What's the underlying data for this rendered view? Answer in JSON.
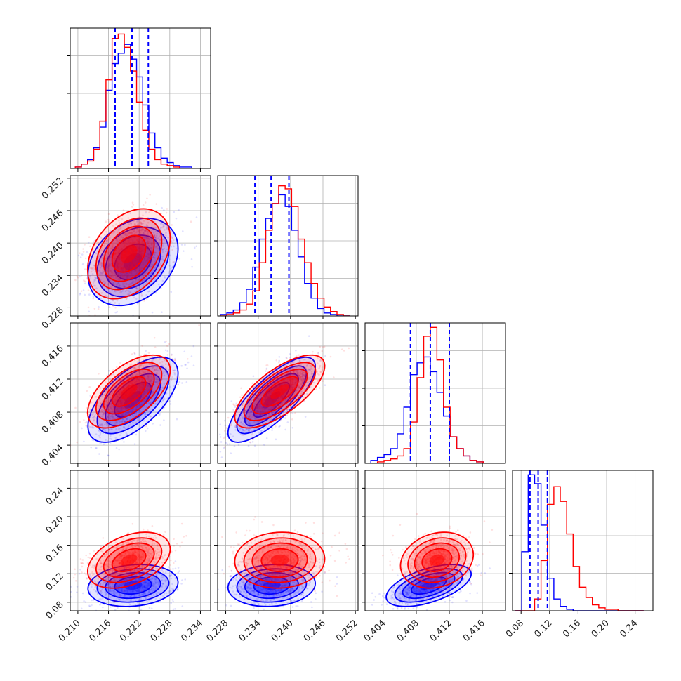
{
  "chart_data": {
    "type": "corner",
    "colors": {
      "blue": "#0000ff",
      "red": "#ff0000"
    },
    "grid": true,
    "params": [
      {
        "range": [
          0.2085,
          0.236
        ],
        "ticks": [
          "0.210",
          "0.216",
          "0.222",
          "0.228",
          "0.234"
        ],
        "tick_values": [
          0.21,
          0.216,
          0.222,
          0.228,
          0.234
        ]
      },
      {
        "range": [
          0.2265,
          0.2525
        ],
        "ticks": [
          "0.228",
          "0.234",
          "0.240",
          "0.246",
          "0.252"
        ],
        "tick_values": [
          0.228,
          0.234,
          0.24,
          0.246,
          0.252
        ]
      },
      {
        "range": [
          0.4018,
          0.4188
        ],
        "ticks": [
          "0.404",
          "0.408",
          "0.412",
          "0.416"
        ],
        "tick_values": [
          0.404,
          0.408,
          0.412,
          0.416
        ]
      },
      {
        "range": [
          0.068,
          0.265
        ],
        "ticks": [
          "0.08",
          "0.12",
          "0.16",
          "0.20",
          "0.24"
        ],
        "tick_values": [
          0.08,
          0.12,
          0.16,
          0.2,
          0.24
        ]
      }
    ],
    "quantile_lines": [
      [
        0.2173,
        0.2206,
        0.2238
      ],
      [
        0.2334,
        0.2364,
        0.2397
      ],
      [
        0.4073,
        0.4097,
        0.412
      ],
      [
        0.0925,
        0.104,
        0.117
      ]
    ],
    "series": [
      {
        "name": "blue",
        "hist1d": [
          {
            "edges_from": 0.2095,
            "edges_to": 0.2335,
            "values": [
              1,
              3,
              6,
              14,
              28,
              53,
              71,
              78,
              84,
              74,
              62,
              43,
              24,
              14,
              7,
              4,
              2,
              1,
              1,
              0
            ]
          },
          {
            "edges_from": 0.227,
            "edges_to": 0.251,
            "values": [
              1,
              2,
              4,
              9,
              18,
              33,
              52,
              66,
              76,
              82,
              74,
              58,
              40,
              22,
              12,
              5,
              2,
              1,
              0,
              0
            ]
          },
          {
            "edges_from": 0.4025,
            "edges_to": 0.4185,
            "values": [
              2,
              4,
              6,
              10,
              20,
              38,
              60,
              68,
              72,
              62,
              48,
              32,
              18,
              10,
              5,
              2,
              1,
              0,
              0,
              0
            ]
          },
          {
            "edges_from": 0.072,
            "edges_to": 0.252,
            "values": [
              0,
              40,
              92,
              86,
              58,
              22,
              8,
              3,
              1,
              0,
              0,
              0,
              0,
              0,
              0,
              0,
              0,
              0,
              0,
              0
            ]
          }
        ]
      },
      {
        "name": "red",
        "hist1d": [
          {
            "edges_from": 0.2095,
            "edges_to": 0.2335,
            "values": [
              1,
              3,
              5,
              13,
              32,
              60,
              88,
              91,
              82,
              66,
              45,
              26,
              13,
              6,
              3,
              2,
              1,
              0,
              0,
              0
            ]
          },
          {
            "edges_from": 0.227,
            "edges_to": 0.251,
            "values": [
              0,
              1,
              2,
              4,
              8,
              17,
              36,
              58,
              76,
              88,
              86,
              74,
              52,
              36,
              22,
              12,
              6,
              3,
              1,
              0
            ]
          },
          {
            "edges_from": 0.4025,
            "edges_to": 0.4185,
            "values": [
              0,
              1,
              2,
              3,
              5,
              10,
              28,
              58,
              86,
              92,
              70,
              38,
              18,
              10,
              5,
              2,
              1,
              0,
              0,
              0
            ]
          },
          {
            "edges_from": 0.072,
            "edges_to": 0.252,
            "values": [
              0,
              0,
              0,
              8,
              34,
              72,
              84,
              74,
              52,
              30,
              16,
              9,
              4,
              2,
              1,
              1,
              0,
              0,
              0,
              0
            ]
          }
        ]
      }
    ],
    "gaussians": {
      "blue": {
        "mean": [
          0.2208,
          0.2365,
          0.4095,
          0.1035
        ],
        "sd": [
          0.0036,
          0.0033,
          0.0021,
          0.012
        ],
        "corr": {
          "0-1": 0.3,
          "0-2": 0.62,
          "1-2": 0.78,
          "0-3": 0.15,
          "1-3": 0.1,
          "2-3": 0.55
        }
      },
      "red": {
        "mean": [
          0.22,
          0.238,
          0.4105,
          0.139
        ],
        "sd": [
          0.0033,
          0.0034,
          0.0018,
          0.016
        ],
        "corr": {
          "0-1": 0.35,
          "0-2": 0.58,
          "1-2": 0.7,
          "0-3": 0.4,
          "1-3": 0.05,
          "2-3": 0.2
        }
      }
    }
  }
}
